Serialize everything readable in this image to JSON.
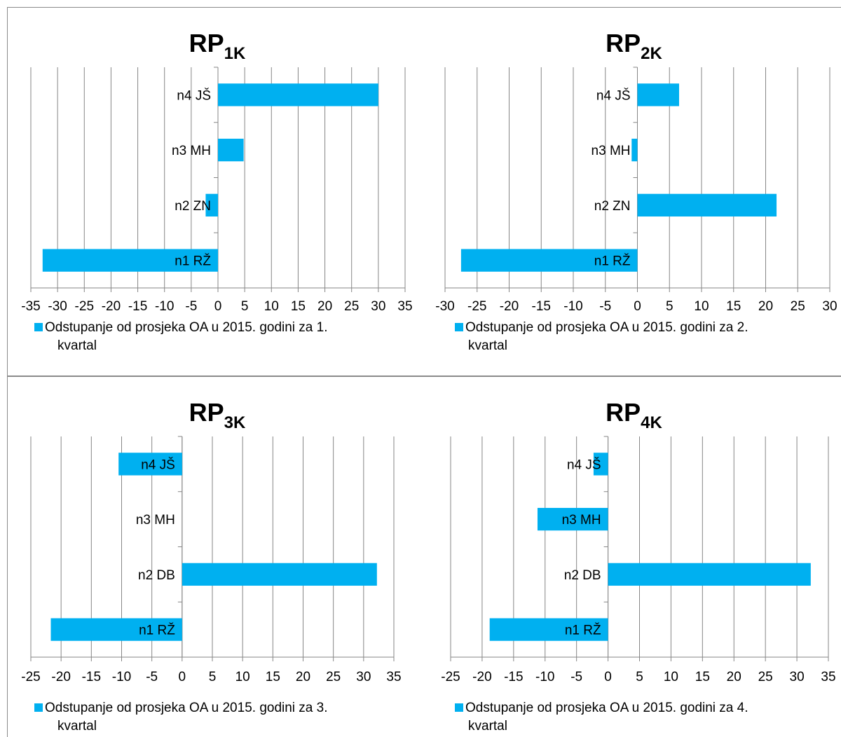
{
  "chart_data": [
    {
      "type": "bar",
      "orientation": "horizontal",
      "title": "RP",
      "title_subscript": "1K",
      "categories": [
        "n1 RŽ",
        "n2 ZN",
        "n3 MH",
        "n4 JŠ"
      ],
      "series": [
        {
          "name": "Odstupanje od prosjeka OA u 2015. godini za 1. kvartal",
          "values": [
            -32.8,
            -2.3,
            4.8,
            30.0
          ]
        }
      ],
      "legend_line1": "Odstupanje od prosjeka OA u 2015. godini za 1.",
      "legend_line2": "kvartal",
      "xlim": [
        -35,
        35
      ],
      "xticks": [
        "-35",
        "-30",
        "-25",
        "-20",
        "-15",
        "-10",
        "-5",
        "0",
        "5",
        "10",
        "15",
        "20",
        "25",
        "30",
        "35"
      ],
      "grid": "vertical",
      "legend_position": "bottom",
      "bar_color": "#00b0f0"
    },
    {
      "type": "bar",
      "orientation": "horizontal",
      "title": "RP",
      "title_subscript": "2K",
      "categories": [
        "n1 RŽ",
        "n2 ZN",
        "n3 MH",
        "n4 JŠ"
      ],
      "series": [
        {
          "name": "Odstupanje od prosjeka OA u 2015. godini za 2. kvartal",
          "values": [
            -27.5,
            21.7,
            -0.9,
            6.5
          ]
        }
      ],
      "legend_line1": "Odstupanje od prosjeka OA u 2015. godini za 2.",
      "legend_line2": "kvartal",
      "xlim": [
        -30,
        30
      ],
      "xticks": [
        "-30",
        "-25",
        "-20",
        "-15",
        "-10",
        "-5",
        "0",
        "5",
        "10",
        "15",
        "20",
        "25",
        "30"
      ],
      "grid": "vertical",
      "legend_position": "bottom",
      "bar_color": "#00b0f0"
    },
    {
      "type": "bar",
      "orientation": "horizontal",
      "title": "RP",
      "title_subscript": "3K",
      "categories": [
        "n1 RŽ",
        "n2 DB",
        "n3 MH",
        "n4 JŠ"
      ],
      "series": [
        {
          "name": "Odstupanje od prosjeka OA u 2015. godini za 3. kvartal",
          "values": [
            -21.7,
            32.2,
            0,
            -10.5
          ]
        }
      ],
      "legend_line1": "Odstupanje od prosjeka OA u 2015. godini za 3.",
      "legend_line2": "kvartal",
      "xlim": [
        -25,
        35
      ],
      "xticks": [
        "-25",
        "-20",
        "-15",
        "-10",
        "-5",
        "0",
        "5",
        "10",
        "15",
        "20",
        "25",
        "30",
        "35"
      ],
      "grid": "vertical",
      "legend_position": "bottom",
      "bar_color": "#00b0f0"
    },
    {
      "type": "bar",
      "orientation": "horizontal",
      "title": "RP",
      "title_subscript": "4K",
      "categories": [
        "n1 RŽ",
        "n2 DB",
        "n3 MH",
        "n4 JŠ"
      ],
      "series": [
        {
          "name": "Odstupanje od prosjeka OA u 2015. godini za 4. kvartal",
          "values": [
            -18.8,
            32.2,
            -11.2,
            -2.3
          ]
        }
      ],
      "legend_line1": "Odstupanje od prosjeka OA u 2015. godini za 4.",
      "legend_line2": "kvartal",
      "xlim": [
        -25,
        35
      ],
      "xticks": [
        "-25",
        "-20",
        "-15",
        "-10",
        "-5",
        "0",
        "5",
        "10",
        "15",
        "20",
        "25",
        "30",
        "35"
      ],
      "grid": "vertical",
      "legend_position": "bottom",
      "bar_color": "#00b0f0"
    }
  ]
}
